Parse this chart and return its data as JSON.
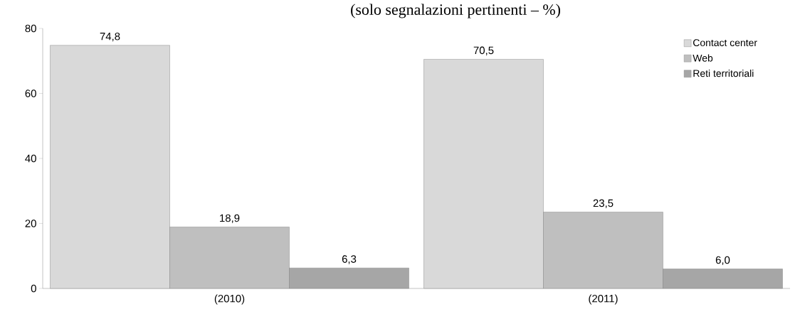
{
  "chart_data": {
    "type": "bar",
    "title": "(solo segnalazioni pertinenti – %)",
    "categories": [
      "(2010)",
      "(2011)"
    ],
    "series": [
      {
        "name": "Contact center",
        "color": "#d9d9d9",
        "values": [
          74.8,
          70.5
        ],
        "value_labels": [
          "74,8",
          "70,5"
        ]
      },
      {
        "name": "Web",
        "color": "#bfbfbf",
        "values": [
          18.9,
          23.5
        ],
        "value_labels": [
          "18,9",
          "23,5"
        ]
      },
      {
        "name": "Reti territoriali",
        "color": "#a6a6a6",
        "values": [
          6.3,
          6.0
        ],
        "value_labels": [
          "6,3",
          "6,0"
        ]
      }
    ],
    "ylim": [
      0,
      80
    ],
    "yticks": [
      0,
      20,
      40,
      60,
      80
    ],
    "grid": false,
    "legend": "top right"
  }
}
